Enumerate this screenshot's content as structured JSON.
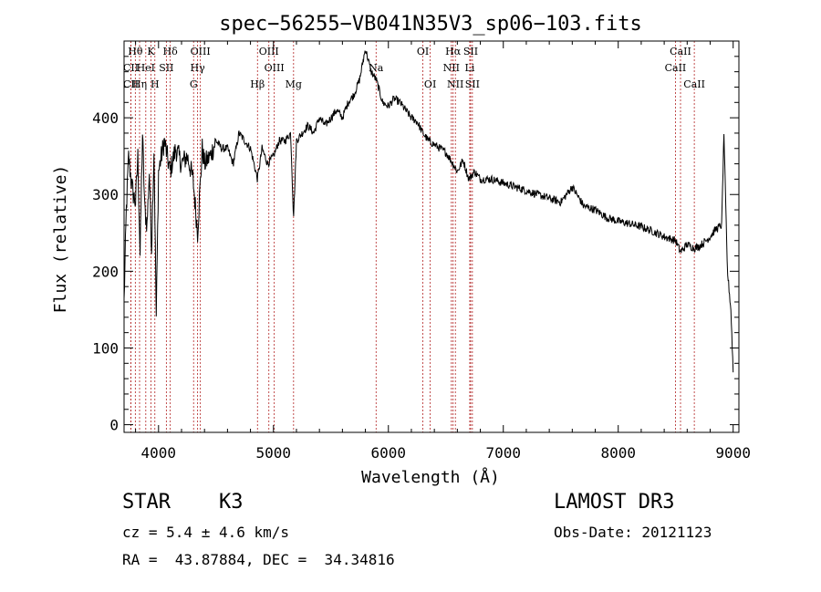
{
  "chart_data": {
    "type": "line",
    "title": "spec−56255−VB041N35V3_sp06−103.fits",
    "xlabel": "Wavelength (Å)",
    "ylabel": "Flux (relative)",
    "xlim": [
      3700,
      9050
    ],
    "ylim": [
      -10,
      500
    ],
    "x_ticks": [
      4000,
      5000,
      6000,
      7000,
      8000,
      9000
    ],
    "y_ticks": [
      0,
      100,
      200,
      300,
      400
    ],
    "series": [
      {
        "name": "flux",
        "x": [
          3700,
          3720,
          3740,
          3760,
          3780,
          3800,
          3820,
          3840,
          3860,
          3880,
          3900,
          3920,
          3940,
          3960,
          3980,
          4000,
          4050,
          4100,
          4150,
          4200,
          4250,
          4300,
          4340,
          4380,
          4400,
          4450,
          4500,
          4550,
          4600,
          4650,
          4700,
          4750,
          4800,
          4861,
          4900,
          4950,
          5000,
          5050,
          5100,
          5150,
          5175,
          5200,
          5250,
          5300,
          5350,
          5400,
          5450,
          5500,
          5550,
          5600,
          5650,
          5700,
          5750,
          5800,
          5850,
          5893,
          5950,
          6000,
          6050,
          6100,
          6150,
          6200,
          6250,
          6300,
          6350,
          6400,
          6450,
          6500,
          6563,
          6600,
          6650,
          6700,
          6750,
          6800,
          6900,
          7000,
          7100,
          7200,
          7300,
          7400,
          7500,
          7600,
          7700,
          7800,
          7900,
          8000,
          8100,
          8200,
          8300,
          8400,
          8500,
          8542,
          8600,
          8662,
          8700,
          8750,
          8800,
          8850,
          8900,
          8920,
          8950,
          8980,
          9000
        ],
        "y": [
          160,
          280,
          350,
          320,
          300,
          290,
          350,
          220,
          380,
          280,
          260,
          330,
          230,
          360,
          140,
          330,
          370,
          330,
          360,
          340,
          350,
          320,
          250,
          360,
          340,
          350,
          370,
          360,
          360,
          340,
          380,
          370,
          360,
          320,
          360,
          340,
          350,
          370,
          370,
          380,
          270,
          370,
          380,
          390,
          380,
          400,
          390,
          400,
          410,
          400,
          420,
          430,
          450,
          490,
          460,
          450,
          420,
          415,
          425,
          420,
          410,
          400,
          395,
          380,
          370,
          365,
          360,
          355,
          340,
          330,
          345,
          320,
          330,
          320,
          320,
          315,
          310,
          305,
          300,
          295,
          290,
          310,
          285,
          280,
          270,
          265,
          262,
          258,
          252,
          245,
          240,
          225,
          235,
          230,
          232,
          238,
          245,
          255,
          260,
          380,
          200,
          150,
          70
        ]
      }
    ],
    "lines": [
      {
        "label": "Hθ",
        "x": 3798,
        "row": 0
      },
      {
        "label": "K",
        "x": 3934,
        "row": 0
      },
      {
        "label": "Hδ",
        "x": 4102,
        "row": 0
      },
      {
        "label": "OIII",
        "x": 4364,
        "row": 0
      },
      {
        "label": "OIII",
        "x": 4960,
        "row": 0
      },
      {
        "label": "OI",
        "x": 6300,
        "row": 0
      },
      {
        "label": "Hα",
        "x": 6563,
        "row": 0
      },
      {
        "label": "SII",
        "x": 6716,
        "row": 0
      },
      {
        "label": "CaII",
        "x": 8542,
        "row": 0
      },
      {
        "label": "CII",
        "x": 3760,
        "row": 1
      },
      {
        "label": "HeI",
        "x": 3889,
        "row": 1
      },
      {
        "label": "SII",
        "x": 4068,
        "row": 1
      },
      {
        "label": "Hγ",
        "x": 4340,
        "row": 1
      },
      {
        "label": "OIII",
        "x": 5007,
        "row": 1
      },
      {
        "label": "NII",
        "x": 6548,
        "row": 1
      },
      {
        "label": "Li",
        "x": 6708,
        "row": 1
      },
      {
        "label": "Na",
        "x": 5893,
        "row": 1
      },
      {
        "label": "CaII",
        "x": 8498,
        "row": 1
      },
      {
        "label": "CII",
        "x": 3760,
        "row": 2
      },
      {
        "label": "Hη",
        "x": 3835,
        "row": 2
      },
      {
        "label": "H",
        "x": 3968,
        "row": 2
      },
      {
        "label": "G",
        "x": 4305,
        "row": 2
      },
      {
        "label": "Hβ",
        "x": 4861,
        "row": 2
      },
      {
        "label": "Mg",
        "x": 5175,
        "row": 2
      },
      {
        "label": "OI",
        "x": 6364,
        "row": 2
      },
      {
        "label": "NII",
        "x": 6583,
        "row": 2
      },
      {
        "label": "SII",
        "x": 6731,
        "row": 2
      },
      {
        "label": "CaII",
        "x": 8662,
        "row": 2
      }
    ]
  },
  "info": {
    "class_line": "STAR    K3",
    "survey": "LAMOST DR3",
    "cz": "cz = 5.4 ± 4.6 km/s",
    "obs_date": "Obs-Date: 20121123",
    "radec": "RA =  43.87884, DEC =  34.34816"
  }
}
